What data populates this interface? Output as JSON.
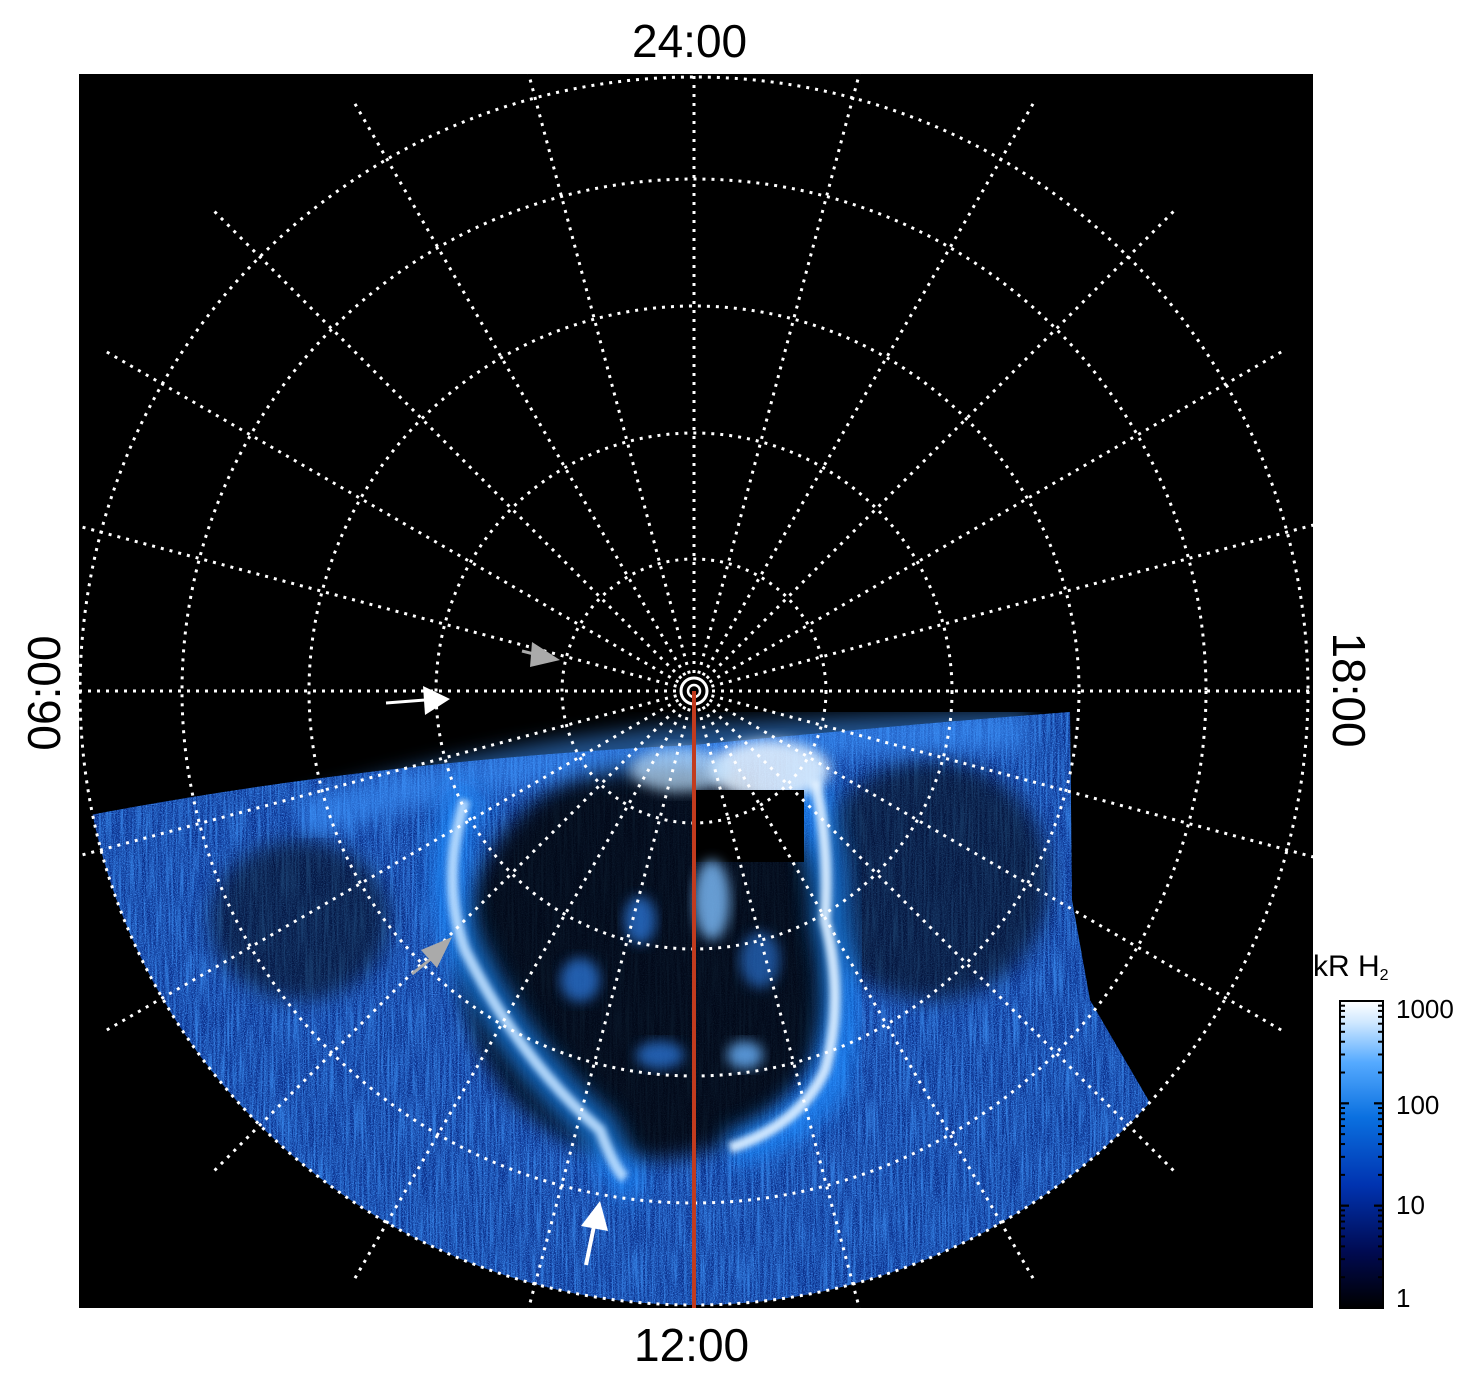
{
  "local_time_labels": {
    "top": "24:00",
    "bottom": "12:00",
    "left": "06:00",
    "right": "18:00"
  },
  "colorbar": {
    "title": "kR H",
    "title_subscript": "2",
    "tick_labels": [
      "1000",
      "100",
      "10",
      "1"
    ],
    "scale": "log",
    "colors": [
      "#000000",
      "#000a50",
      "#0033b0",
      "#0a70e0",
      "#55aaff",
      "#cfe8ff",
      "#ffffff"
    ]
  },
  "image_colors": {
    "background": "#000000",
    "grid": "#ffffff",
    "meridian_line": "#c23b1e",
    "arrow_white": "#ffffff",
    "arrow_grey": "#aaaaaa"
  }
}
